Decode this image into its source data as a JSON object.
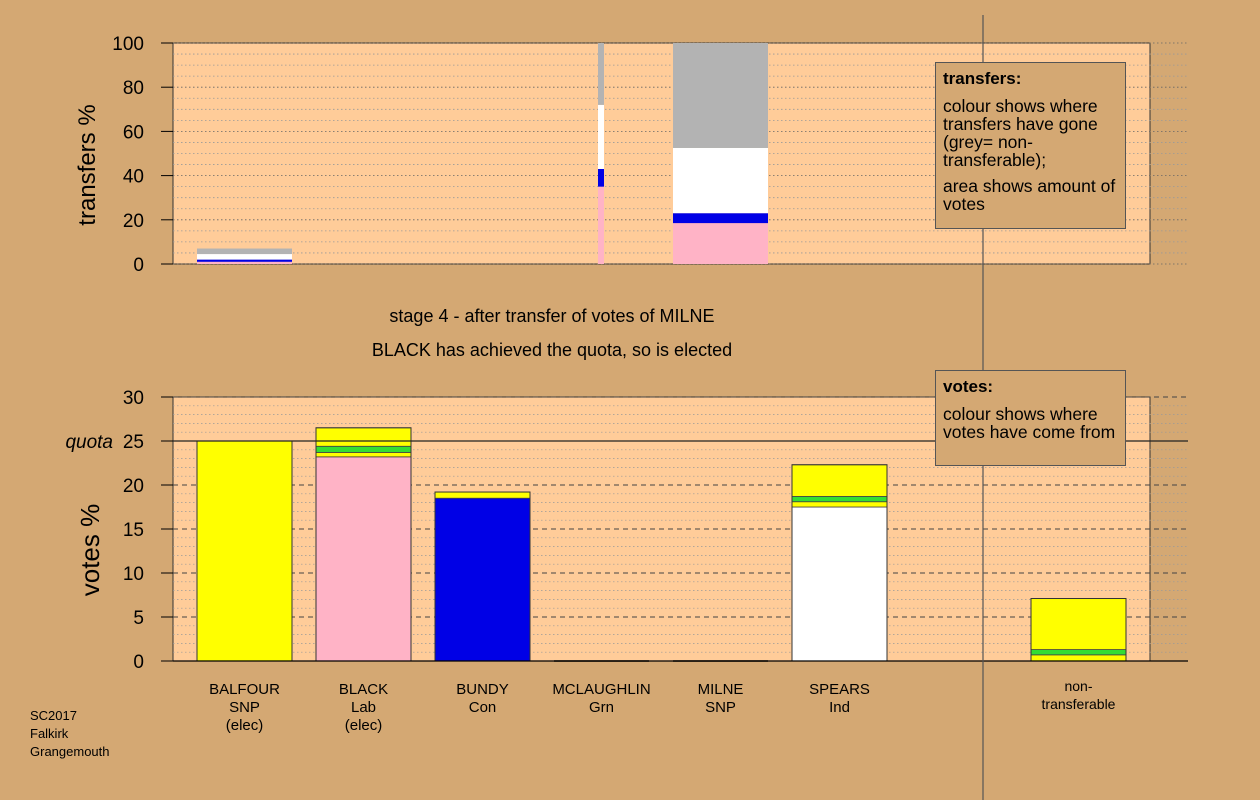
{
  "chart_data": [
    {
      "type": "bar",
      "stacked": true,
      "ylabel": "transfers %",
      "ylim": [
        0,
        100
      ],
      "yticks": [
        0,
        20,
        40,
        60,
        80,
        100
      ],
      "grid": "dotted",
      "categories": [
        "BALFOUR",
        "BLACK",
        "BUNDY",
        "MCLAUGHLIN",
        "MILNE",
        "SPEARS",
        "non-transferable"
      ],
      "bars": [
        {
          "category": "BALFOUR",
          "width": "full",
          "segments": [
            {
              "color": "#ffb3c6",
              "value": 1.0
            },
            {
              "color": "#0000e6",
              "value": 1.0
            },
            {
              "color": "#ffffff",
              "value": 2.5
            },
            {
              "color": "#b3b3b3",
              "value": 2.5
            }
          ]
        },
        {
          "category": "MCLAUGHLIN",
          "width": "narrow",
          "segments": [
            {
              "color": "#ffb3c6",
              "value": 35
            },
            {
              "color": "#0000e6",
              "value": 8
            },
            {
              "color": "#ffffff",
              "value": 29
            },
            {
              "color": "#b3b3b3",
              "value": 28
            }
          ]
        },
        {
          "category": "MILNE",
          "width": "full",
          "segments": [
            {
              "color": "#ffb3c6",
              "value": 18.5
            },
            {
              "color": "#0000e6",
              "value": 4.5
            },
            {
              "color": "#ffffff",
              "value": 29.5
            },
            {
              "color": "#b3b3b3",
              "value": 47.5
            }
          ]
        }
      ]
    },
    {
      "type": "bar",
      "stacked": true,
      "ylabel": "votes %",
      "ylim": [
        0,
        30
      ],
      "yticks": [
        0,
        5,
        10,
        15,
        20,
        25,
        30
      ],
      "grid": "dashed",
      "quota": 25,
      "quota_label": "quota",
      "categories": [
        "BALFOUR",
        "BLACK",
        "BUNDY",
        "MCLAUGHLIN",
        "MILNE",
        "SPEARS",
        "non-transferable"
      ],
      "bars": [
        {
          "category": "BALFOUR",
          "segments": [
            {
              "color": "#ffff00",
              "value": 25
            }
          ]
        },
        {
          "category": "BLACK",
          "segments": [
            {
              "color": "#ffb3c6",
              "value": 23.2
            },
            {
              "color": "#ffff00",
              "value": 0.5
            },
            {
              "color": "#33dd33",
              "value": 0.7
            },
            {
              "color": "#ffff00",
              "value": 2.1
            }
          ]
        },
        {
          "category": "BUNDY",
          "segments": [
            {
              "color": "#0000e6",
              "value": 18.5
            },
            {
              "color": "#ffff00",
              "value": 0.7
            }
          ]
        },
        {
          "category": "MCLAUGHLIN",
          "segments": [
            {
              "color": "#33dd33",
              "value": 0
            }
          ]
        },
        {
          "category": "MILNE",
          "segments": [
            {
              "color": "#ffff00",
              "value": 0
            }
          ]
        },
        {
          "category": "SPEARS",
          "segments": [
            {
              "color": "#ffffff",
              "value": 17.5
            },
            {
              "color": "#ffff00",
              "value": 0.6
            },
            {
              "color": "#33dd33",
              "value": 0.6
            },
            {
              "color": "#ffff00",
              "value": 3.6
            }
          ]
        },
        {
          "category": "non-transferable",
          "segments": [
            {
              "color": "#ffff00",
              "value": 0.7
            },
            {
              "color": "#33dd33",
              "value": 0.6
            },
            {
              "color": "#ffff00",
              "value": 5.8
            }
          ]
        }
      ]
    }
  ],
  "candidates": [
    {
      "name": "BALFOUR",
      "party": "SNP",
      "status": "(elec)"
    },
    {
      "name": "BLACK",
      "party": "Lab",
      "status": "(elec)"
    },
    {
      "name": "BUNDY",
      "party": "Con",
      "status": ""
    },
    {
      "name": "MCLAUGHLIN",
      "party": "Grn",
      "status": ""
    },
    {
      "name": "MILNE",
      "party": "SNP",
      "status": ""
    },
    {
      "name": "SPEARS",
      "party": "Ind",
      "status": ""
    },
    {
      "name": "non-",
      "party": "transferable",
      "status": ""
    }
  ],
  "legend_transfers": {
    "title": "transfers:",
    "text1": "colour shows where transfers have gone (grey= non-transferable);",
    "text2": "area shows amount of votes"
  },
  "legend_votes": {
    "title": "votes:",
    "text1": "colour shows where votes have come from"
  },
  "stage_text": "stage 4 - after transfer of votes of MILNE",
  "elected_text": "BLACK has achieved the quota, so is elected",
  "footer": {
    "line1": "SC2017",
    "line2": "Falkirk",
    "line3": "Grangemouth"
  },
  "colors": {
    "background": "#d4a873",
    "plot_background": "#ffcc99",
    "axis": "#000000",
    "divider": "#555555"
  }
}
